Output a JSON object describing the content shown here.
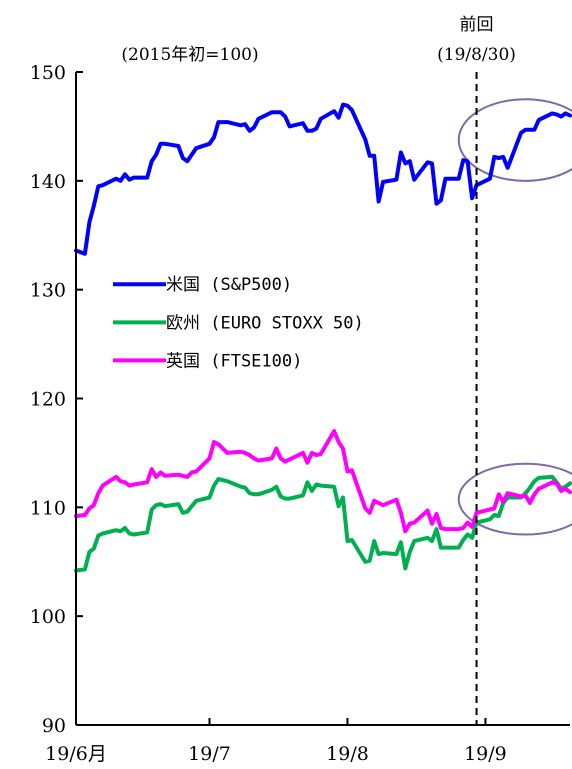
{
  "chart_data": {
    "type": "line",
    "title": "",
    "subtitle": "(2015年初=100)",
    "xlabel": "",
    "ylabel": "",
    "ylim": [
      90,
      150
    ],
    "yticks": [
      90,
      100,
      110,
      120,
      130,
      140,
      150
    ],
    "xlim": [
      "2019-06-01",
      "2019-09-20"
    ],
    "xticks": [
      {
        "date": "2019-06-01",
        "label": "19/6月"
      },
      {
        "date": "2019-07-01",
        "label": "19/7"
      },
      {
        "date": "2019-08-01",
        "label": "19/8"
      },
      {
        "date": "2019-09-01",
        "label": "19/9"
      }
    ],
    "grid": false,
    "legend_position": "center-left",
    "marker_line": {
      "date": "2019-08-30",
      "label_top": "前回",
      "label_bottom": "(19/8/30)"
    },
    "highlight_ellipses": [
      {
        "series": "米国 (S&P500)",
        "x_from": "2019-08-26",
        "x_to": "2019-09-20",
        "y_from": 140,
        "y_to": 147.5
      },
      {
        "series": "欧州/英国",
        "x_from": "2019-08-26",
        "x_to": "2019-09-20",
        "y_from": 107.5,
        "y_to": 114
      }
    ],
    "series": [
      {
        "name": "米国 (S&P500)",
        "color": "#0000ff",
        "points": [
          [
            "2019-06-01",
            133.6
          ],
          [
            "2019-06-03",
            133.3
          ],
          [
            "2019-06-04",
            136.2
          ],
          [
            "2019-06-05",
            137.7
          ],
          [
            "2019-06-06",
            139.5
          ],
          [
            "2019-06-07",
            139.6
          ],
          [
            "2019-06-10",
            140.2
          ],
          [
            "2019-06-11",
            140.0
          ],
          [
            "2019-06-12",
            140.6
          ],
          [
            "2019-06-13",
            140.1
          ],
          [
            "2019-06-14",
            140.3
          ],
          [
            "2019-06-17",
            140.3
          ],
          [
            "2019-06-18",
            141.8
          ],
          [
            "2019-06-19",
            142.4
          ],
          [
            "2019-06-20",
            143.4
          ],
          [
            "2019-06-21",
            143.4
          ],
          [
            "2019-06-24",
            143.2
          ],
          [
            "2019-06-25",
            142.1
          ],
          [
            "2019-06-26",
            141.8
          ],
          [
            "2019-06-27",
            142.4
          ],
          [
            "2019-06-28",
            143.0
          ],
          [
            "2019-07-01",
            143.4
          ],
          [
            "2019-07-02",
            144.0
          ],
          [
            "2019-07-03",
            145.4
          ],
          [
            "2019-07-05",
            145.4
          ],
          [
            "2019-07-08",
            145.1
          ],
          [
            "2019-07-09",
            145.2
          ],
          [
            "2019-07-10",
            144.6
          ],
          [
            "2019-07-11",
            144.9
          ],
          [
            "2019-07-12",
            145.7
          ],
          [
            "2019-07-15",
            146.3
          ],
          [
            "2019-07-16",
            146.3
          ],
          [
            "2019-07-17",
            146.3
          ],
          [
            "2019-07-18",
            145.9
          ],
          [
            "2019-07-19",
            145.0
          ],
          [
            "2019-07-22",
            145.3
          ],
          [
            "2019-07-23",
            144.6
          ],
          [
            "2019-07-24",
            144.6
          ],
          [
            "2019-07-25",
            144.8
          ],
          [
            "2019-07-26",
            145.7
          ],
          [
            "2019-07-29",
            146.4
          ],
          [
            "2019-07-30",
            145.8
          ],
          [
            "2019-07-31",
            147.0
          ],
          [
            "2019-08-01",
            146.9
          ],
          [
            "2019-08-02",
            146.5
          ],
          [
            "2019-08-05",
            143.8
          ],
          [
            "2019-08-06",
            142.3
          ],
          [
            "2019-08-07",
            142.3
          ],
          [
            "2019-08-08",
            138.1
          ],
          [
            "2019-08-09",
            139.9
          ],
          [
            "2019-08-12",
            140.1
          ],
          [
            "2019-08-13",
            142.6
          ],
          [
            "2019-08-14",
            141.6
          ],
          [
            "2019-08-15",
            141.8
          ],
          [
            "2019-08-16",
            140.1
          ],
          [
            "2019-08-19",
            141.7
          ],
          [
            "2019-08-20",
            141.6
          ],
          [
            "2019-08-21",
            137.9
          ],
          [
            "2019-08-22",
            138.2
          ],
          [
            "2019-08-23",
            140.2
          ],
          [
            "2019-08-26",
            140.2
          ],
          [
            "2019-08-27",
            141.9
          ],
          [
            "2019-08-28",
            141.8
          ],
          [
            "2019-08-29",
            138.4
          ],
          [
            "2019-08-30",
            139.6
          ],
          [
            "2019-09-02",
            140.2
          ],
          [
            "2019-09-03",
            142.2
          ],
          [
            "2019-09-04",
            142.1
          ],
          [
            "2019-09-05",
            142.2
          ],
          [
            "2019-09-06",
            141.2
          ],
          [
            "2019-09-09",
            144.4
          ],
          [
            "2019-09-10",
            144.7
          ],
          [
            "2019-09-11",
            144.7
          ],
          [
            "2019-09-12",
            144.7
          ],
          [
            "2019-09-13",
            145.6
          ],
          [
            "2019-09-16",
            146.2
          ],
          [
            "2019-09-17",
            146.1
          ],
          [
            "2019-09-18",
            145.9
          ],
          [
            "2019-09-19",
            146.2
          ],
          [
            "2019-09-20",
            146.0
          ]
        ]
      },
      {
        "name": "欧州 (EURO STOXX 50)",
        "color": "#00b050",
        "points": [
          [
            "2019-06-01",
            104.2
          ],
          [
            "2019-06-03",
            104.3
          ],
          [
            "2019-06-04",
            105.9
          ],
          [
            "2019-06-05",
            106.2
          ],
          [
            "2019-06-06",
            107.4
          ],
          [
            "2019-06-07",
            107.6
          ],
          [
            "2019-06-10",
            107.9
          ],
          [
            "2019-06-11",
            107.8
          ],
          [
            "2019-06-12",
            108.1
          ],
          [
            "2019-06-13",
            107.6
          ],
          [
            "2019-06-14",
            107.5
          ],
          [
            "2019-06-17",
            107.7
          ],
          [
            "2019-06-18",
            109.8
          ],
          [
            "2019-06-19",
            110.2
          ],
          [
            "2019-06-20",
            110.3
          ],
          [
            "2019-06-21",
            110.1
          ],
          [
            "2019-06-24",
            110.3
          ],
          [
            "2019-06-25",
            109.5
          ],
          [
            "2019-06-26",
            109.6
          ],
          [
            "2019-06-27",
            110.1
          ],
          [
            "2019-06-28",
            110.6
          ],
          [
            "2019-07-01",
            110.9
          ],
          [
            "2019-07-02",
            112.0
          ],
          [
            "2019-07-03",
            112.6
          ],
          [
            "2019-07-05",
            112.4
          ],
          [
            "2019-07-08",
            111.9
          ],
          [
            "2019-07-09",
            111.8
          ],
          [
            "2019-07-10",
            111.3
          ],
          [
            "2019-07-11",
            111.2
          ],
          [
            "2019-07-12",
            111.2
          ],
          [
            "2019-07-15",
            111.6
          ],
          [
            "2019-07-16",
            111.9
          ],
          [
            "2019-07-17",
            111.0
          ],
          [
            "2019-07-18",
            110.8
          ],
          [
            "2019-07-19",
            110.8
          ],
          [
            "2019-07-22",
            111.1
          ],
          [
            "2019-07-23",
            112.3
          ],
          [
            "2019-07-24",
            111.5
          ],
          [
            "2019-07-25",
            112.1
          ],
          [
            "2019-07-26",
            112.0
          ],
          [
            "2019-07-29",
            111.9
          ],
          [
            "2019-07-30",
            110.1
          ],
          [
            "2019-07-31",
            110.9
          ],
          [
            "2019-08-01",
            106.9
          ],
          [
            "2019-08-02",
            107.0
          ],
          [
            "2019-08-05",
            105.0
          ],
          [
            "2019-08-06",
            105.1
          ],
          [
            "2019-08-07",
            106.9
          ],
          [
            "2019-08-08",
            105.7
          ],
          [
            "2019-08-09",
            105.8
          ],
          [
            "2019-08-12",
            105.7
          ],
          [
            "2019-08-13",
            106.8
          ],
          [
            "2019-08-14",
            104.4
          ],
          [
            "2019-08-15",
            105.9
          ],
          [
            "2019-08-16",
            106.9
          ],
          [
            "2019-08-19",
            107.2
          ],
          [
            "2019-08-20",
            106.9
          ],
          [
            "2019-08-21",
            108.0
          ],
          [
            "2019-08-22",
            106.3
          ],
          [
            "2019-08-23",
            106.3
          ],
          [
            "2019-08-26",
            106.3
          ],
          [
            "2019-08-27",
            107.0
          ],
          [
            "2019-08-28",
            107.5
          ],
          [
            "2019-08-29",
            107.2
          ],
          [
            "2019-08-30",
            108.6
          ],
          [
            "2019-09-02",
            108.9
          ],
          [
            "2019-09-03",
            109.3
          ],
          [
            "2019-09-04",
            109.2
          ],
          [
            "2019-09-05",
            110.4
          ],
          [
            "2019-09-06",
            110.9
          ],
          [
            "2019-09-09",
            110.9
          ],
          [
            "2019-09-10",
            111.3
          ],
          [
            "2019-09-11",
            111.8
          ],
          [
            "2019-09-12",
            112.4
          ],
          [
            "2019-09-13",
            112.7
          ],
          [
            "2019-09-16",
            112.8
          ],
          [
            "2019-09-17",
            112.3
          ],
          [
            "2019-09-18",
            111.7
          ],
          [
            "2019-09-19",
            111.9
          ],
          [
            "2019-09-20",
            112.2
          ]
        ]
      },
      {
        "name": "英国 (FTSE100)",
        "color": "#ff00ff",
        "points": [
          [
            "2019-06-01",
            109.2
          ],
          [
            "2019-06-03",
            109.3
          ],
          [
            "2019-06-04",
            109.9
          ],
          [
            "2019-06-05",
            110.2
          ],
          [
            "2019-06-06",
            111.3
          ],
          [
            "2019-06-07",
            112.0
          ],
          [
            "2019-06-10",
            112.8
          ],
          [
            "2019-06-11",
            112.4
          ],
          [
            "2019-06-12",
            112.3
          ],
          [
            "2019-06-13",
            112.0
          ],
          [
            "2019-06-14",
            112.1
          ],
          [
            "2019-06-17",
            112.3
          ],
          [
            "2019-06-18",
            113.5
          ],
          [
            "2019-06-19",
            112.8
          ],
          [
            "2019-06-20",
            113.2
          ],
          [
            "2019-06-21",
            112.9
          ],
          [
            "2019-06-24",
            113.0
          ],
          [
            "2019-06-25",
            112.9
          ],
          [
            "2019-06-26",
            112.8
          ],
          [
            "2019-06-27",
            113.2
          ],
          [
            "2019-06-28",
            113.3
          ],
          [
            "2019-07-01",
            114.5
          ],
          [
            "2019-07-02",
            116.0
          ],
          [
            "2019-07-03",
            115.8
          ],
          [
            "2019-07-05",
            115.0
          ],
          [
            "2019-07-08",
            115.1
          ],
          [
            "2019-07-09",
            115.0
          ],
          [
            "2019-07-10",
            114.8
          ],
          [
            "2019-07-11",
            114.5
          ],
          [
            "2019-07-12",
            114.3
          ],
          [
            "2019-07-15",
            114.5
          ],
          [
            "2019-07-16",
            115.4
          ],
          [
            "2019-07-17",
            114.5
          ],
          [
            "2019-07-18",
            114.2
          ],
          [
            "2019-07-19",
            114.4
          ],
          [
            "2019-07-22",
            115.0
          ],
          [
            "2019-07-23",
            114.1
          ],
          [
            "2019-07-24",
            115.0
          ],
          [
            "2019-07-25",
            114.8
          ],
          [
            "2019-07-26",
            114.9
          ],
          [
            "2019-07-29",
            117.0
          ],
          [
            "2019-07-30",
            116.0
          ],
          [
            "2019-07-31",
            115.4
          ],
          [
            "2019-08-01",
            113.3
          ],
          [
            "2019-08-02",
            113.4
          ],
          [
            "2019-08-05",
            109.9
          ],
          [
            "2019-08-06",
            109.5
          ],
          [
            "2019-08-07",
            110.6
          ],
          [
            "2019-08-08",
            110.4
          ],
          [
            "2019-08-09",
            110.2
          ],
          [
            "2019-08-12",
            110.7
          ],
          [
            "2019-08-13",
            109.5
          ],
          [
            "2019-08-14",
            107.8
          ],
          [
            "2019-08-15",
            108.5
          ],
          [
            "2019-08-16",
            108.6
          ],
          [
            "2019-08-19",
            109.7
          ],
          [
            "2019-08-20",
            108.5
          ],
          [
            "2019-08-21",
            109.4
          ],
          [
            "2019-08-22",
            108.1
          ],
          [
            "2019-08-23",
            108.0
          ],
          [
            "2019-08-26",
            108.0
          ],
          [
            "2019-08-27",
            108.1
          ],
          [
            "2019-08-28",
            108.6
          ],
          [
            "2019-08-29",
            108.2
          ],
          [
            "2019-08-30",
            109.5
          ],
          [
            "2019-09-02",
            109.8
          ],
          [
            "2019-09-03",
            109.9
          ],
          [
            "2019-09-04",
            111.2
          ],
          [
            "2019-09-05",
            110.5
          ],
          [
            "2019-09-06",
            111.3
          ],
          [
            "2019-09-09",
            111.0
          ],
          [
            "2019-09-10",
            111.1
          ],
          [
            "2019-09-11",
            110.4
          ],
          [
            "2019-09-12",
            111.2
          ],
          [
            "2019-09-13",
            111.7
          ],
          [
            "2019-09-16",
            112.3
          ],
          [
            "2019-09-17",
            112.2
          ],
          [
            "2019-09-18",
            111.5
          ],
          [
            "2019-09-19",
            111.7
          ],
          [
            "2019-09-20",
            111.4
          ]
        ]
      }
    ]
  }
}
